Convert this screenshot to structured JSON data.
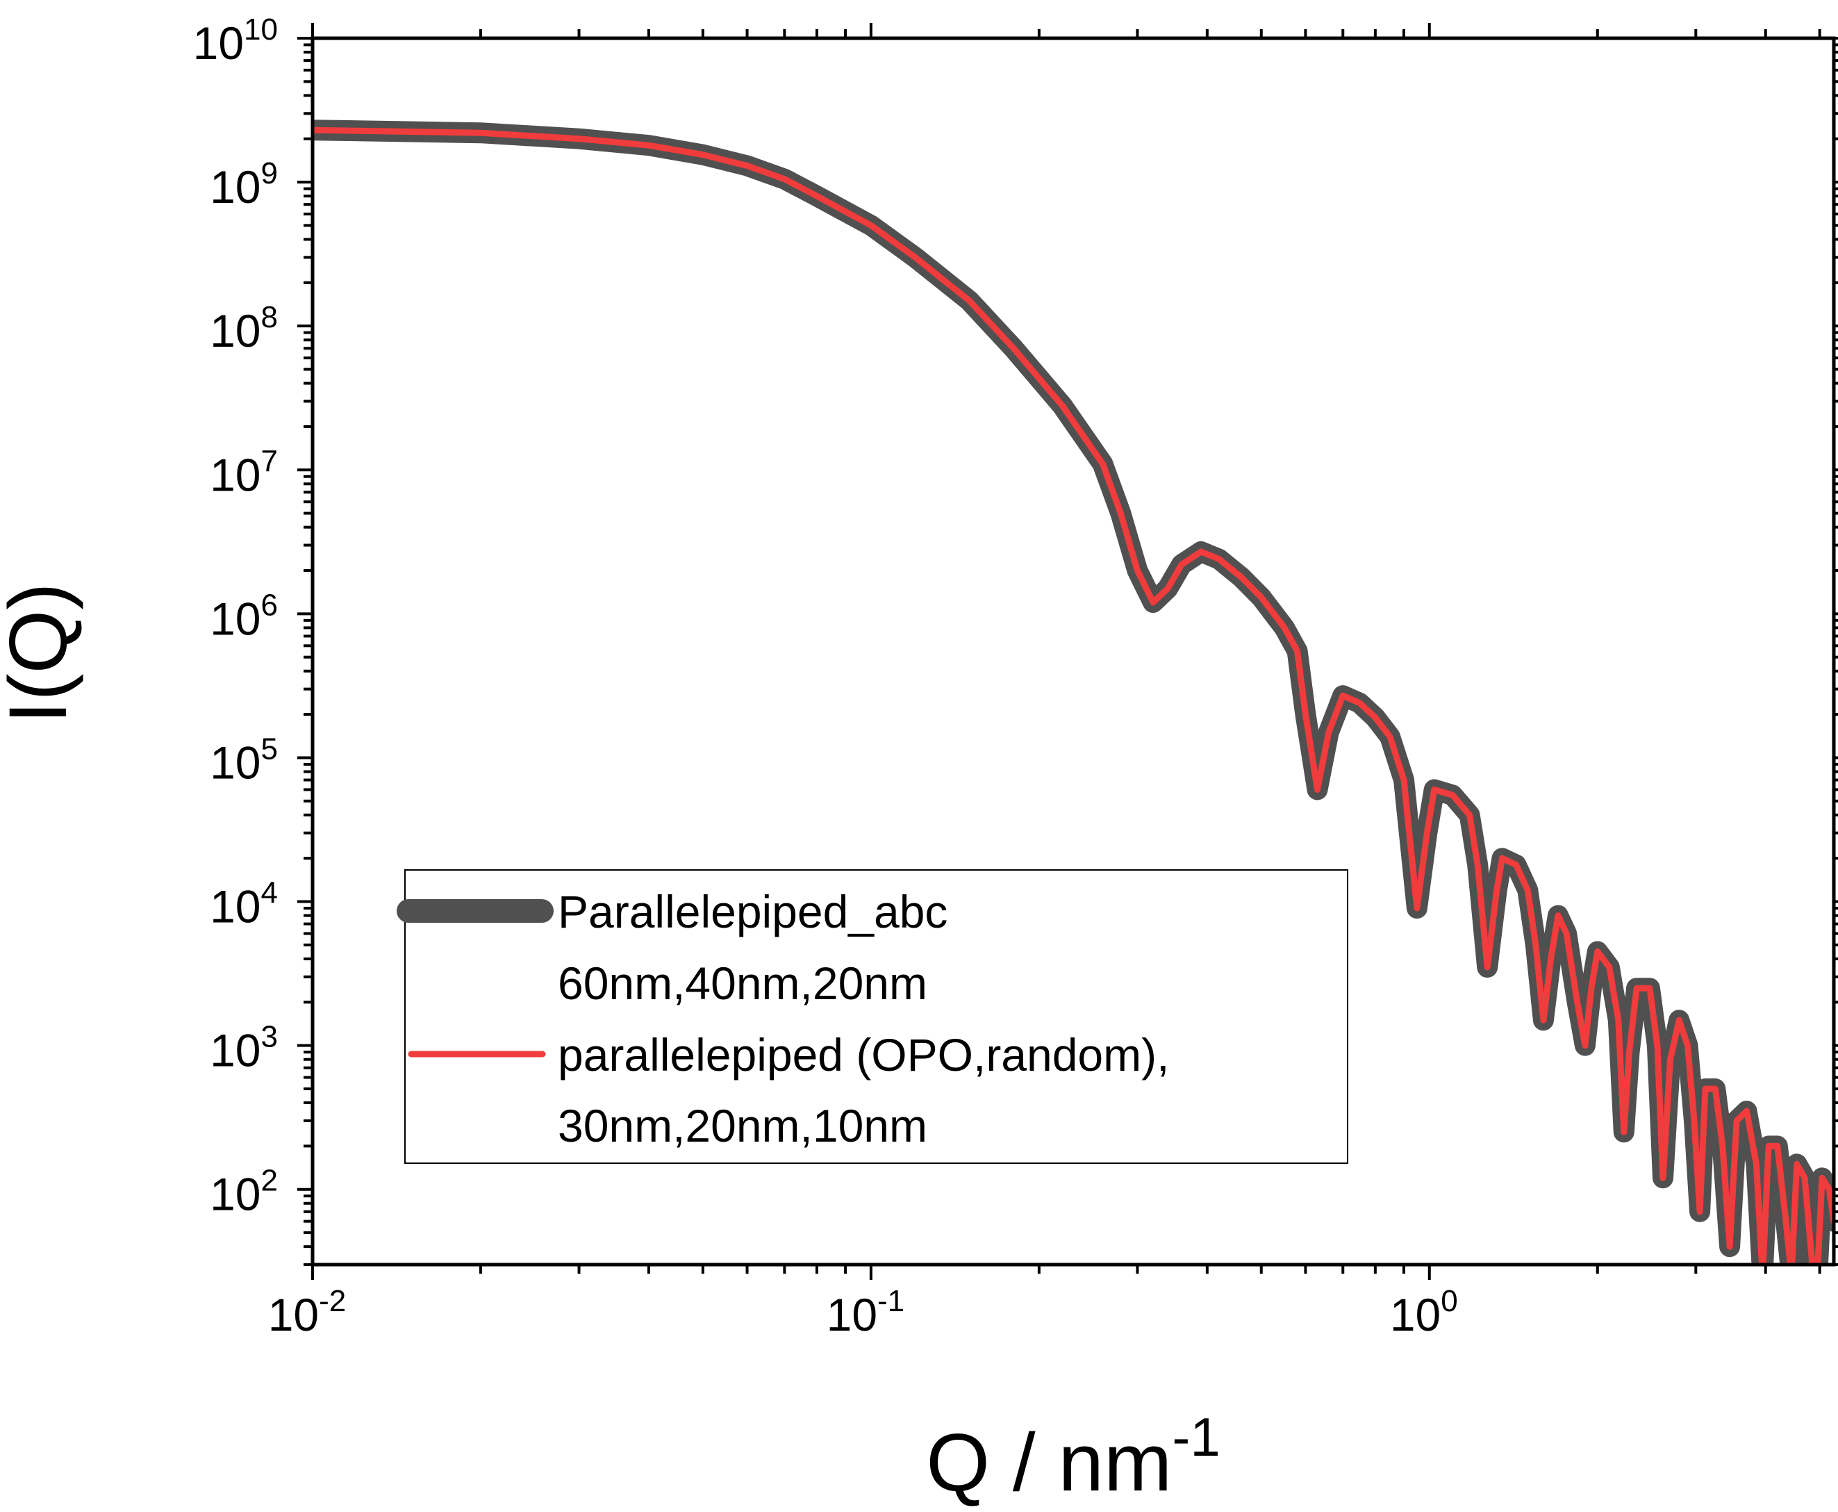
{
  "chart_data": {
    "type": "line",
    "title": "",
    "xlabel": {
      "base": "Q / nm",
      "sup": "-1"
    },
    "ylabel": "I(Q)",
    "x_scale": "log",
    "y_scale": "log",
    "xlim": [
      0.01,
      5.3
    ],
    "ylim": [
      30,
      10000000000
    ],
    "x_ticks": [
      {
        "value": 0.01,
        "base": "10",
        "exp": "-2"
      },
      {
        "value": 0.1,
        "base": "10",
        "exp": "-1"
      },
      {
        "value": 1,
        "base": "10",
        "exp": "0"
      }
    ],
    "y_ticks": [
      {
        "value": 100,
        "base": "10",
        "exp": "2"
      },
      {
        "value": 1000,
        "base": "10",
        "exp": "3"
      },
      {
        "value": 10000,
        "base": "10",
        "exp": "4"
      },
      {
        "value": 100000,
        "base": "10",
        "exp": "5"
      },
      {
        "value": 1000000,
        "base": "10",
        "exp": "6"
      },
      {
        "value": 10000000,
        "base": "10",
        "exp": "7"
      },
      {
        "value": 100000000,
        "base": "10",
        "exp": "8"
      },
      {
        "value": 1000000000,
        "base": "10",
        "exp": "9"
      },
      {
        "value": 10000000000,
        "base": "10",
        "exp": "10"
      }
    ],
    "grid": false,
    "legend_position": "bottom-left",
    "legend": [
      {
        "lines": [
          "Parallelepiped_abc",
          "60nm,40nm,20nm"
        ],
        "color": "#505050"
      },
      {
        "lines": [
          "parallelepiped (OPO,random),",
          "30nm,20nm,10nm"
        ],
        "color": "#f03c3c"
      }
    ],
    "series_points": [
      [
        0.01,
        2300000000.0
      ],
      [
        0.02,
        2200000000.0
      ],
      [
        0.03,
        2000000000.0
      ],
      [
        0.04,
        1800000000.0
      ],
      [
        0.05,
        1550000000.0
      ],
      [
        0.06,
        1300000000.0
      ],
      [
        0.07,
        1050000000.0
      ],
      [
        0.08,
        800000000.0
      ],
      [
        0.1,
        500000000.0
      ],
      [
        0.12,
        300000000.0
      ],
      [
        0.15,
        150000000.0
      ],
      [
        0.18,
        70000000.0
      ],
      [
        0.22,
        28000000.0
      ],
      [
        0.26,
        11000000.0
      ],
      [
        0.28,
        5000000.0
      ],
      [
        0.3,
        2000000.0
      ],
      [
        0.32,
        1200000.0
      ],
      [
        0.34,
        1500000.0
      ],
      [
        0.36,
        2200000.0
      ],
      [
        0.39,
        2700000.0
      ],
      [
        0.42,
        2400000.0
      ],
      [
        0.46,
        1800000.0
      ],
      [
        0.5,
        1300000.0
      ],
      [
        0.55,
        800000.0
      ],
      [
        0.58,
        550000.0
      ],
      [
        0.6,
        200000.0
      ],
      [
        0.63,
        60000.0
      ],
      [
        0.66,
        150000.0
      ],
      [
        0.7,
        270000.0
      ],
      [
        0.75,
        240000.0
      ],
      [
        0.8,
        190000.0
      ],
      [
        0.85,
        140000.0
      ],
      [
        0.9,
        70000.0
      ],
      [
        0.95,
        9000.0
      ],
      [
        0.99,
        30000.0
      ],
      [
        1.02,
        60000.0
      ],
      [
        1.1,
        55000.0
      ],
      [
        1.18,
        40000.0
      ],
      [
        1.22,
        18000.0
      ],
      [
        1.27,
        3500.0
      ],
      [
        1.32,
        12000.0
      ],
      [
        1.35,
        20000.0
      ],
      [
        1.43,
        18000.0
      ],
      [
        1.5,
        12000.0
      ],
      [
        1.55,
        5000.0
      ],
      [
        1.6,
        1500.0
      ],
      [
        1.65,
        4000.0
      ],
      [
        1.7,
        8000.0
      ],
      [
        1.76,
        6000.0
      ],
      [
        1.84,
        2000.0
      ],
      [
        1.9,
        1000.0
      ],
      [
        1.95,
        2500.0
      ],
      [
        2.0,
        4500.0
      ],
      [
        2.1,
        3500.0
      ],
      [
        2.18,
        1500.0
      ],
      [
        2.23,
        250.0
      ],
      [
        2.28,
        900.0
      ],
      [
        2.35,
        2500.0
      ],
      [
        2.48,
        2500.0
      ],
      [
        2.56,
        1000.0
      ],
      [
        2.62,
        120.0
      ],
      [
        2.7,
        800.0
      ],
      [
        2.8,
        1500.0
      ],
      [
        2.9,
        1000.0
      ],
      [
        2.98,
        300.0
      ],
      [
        3.05,
        70.0
      ],
      [
        3.12,
        500.0
      ],
      [
        3.25,
        500.0
      ],
      [
        3.35,
        200.0
      ],
      [
        3.45,
        40.0
      ],
      [
        3.55,
        300.0
      ],
      [
        3.7,
        350.0
      ],
      [
        3.85,
        150.0
      ],
      [
        3.95,
        25.0
      ],
      [
        4.05,
        200.0
      ],
      [
        4.2,
        200.0
      ],
      [
        4.35,
        60.0
      ],
      [
        4.45,
        25.0
      ],
      [
        4.55,
        150.0
      ],
      [
        4.7,
        120.0
      ],
      [
        4.85,
        30.0
      ],
      [
        4.95,
        25.0
      ],
      [
        5.05,
        120.0
      ],
      [
        5.2,
        100.0
      ],
      [
        5.3,
        60.0
      ]
    ],
    "series": [
      {
        "name": "Parallelepiped_abc 60nm,40nm,20nm",
        "color": "#505050"
      },
      {
        "name": "parallelepiped (OPO,random), 30nm,20nm,10nm",
        "color": "#f03c3c"
      }
    ]
  }
}
